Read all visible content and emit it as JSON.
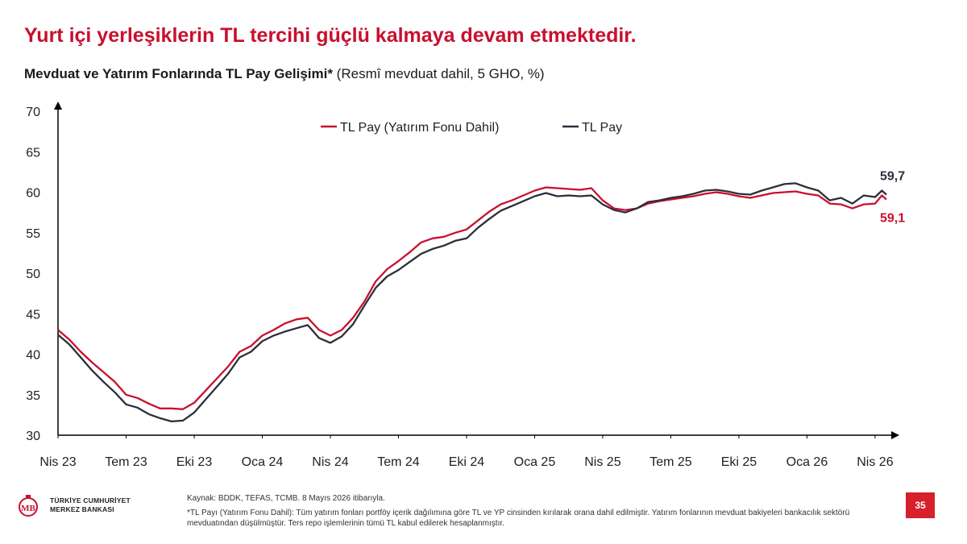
{
  "header": {
    "title": "Yurt içi yerleşiklerin TL tercihi güçlü kalmaya devam etmektedir.",
    "subtitle_bold": "Mevduat ve Yatırım Fonlarında TL Pay Gelişimi*",
    "subtitle_normal": " (Resmî mevduat dahil, 5 GHO, %)"
  },
  "footer": {
    "logo_line1": "TÜRKİYE CUMHURİYET",
    "logo_line2": "MERKEZ BANKASI",
    "source": "Kaynak: BDDK, TEFAS, TCMB. 8 Mayıs 2026 itibarıyla.",
    "note": "*TL Payı (Yatırım Fonu Dahil): Tüm yatırım fonları portföy içerik dağılımına göre TL ve YP cinsinden kırılarak orana dahil edilmiştir. Yatırım fonlarının mevduat bakiyeleri bankacılık sektörü mevduatından düşülmüştür. Ters repo işlemlerinin tümü TL kabul edilerek hesaplanmıştır.",
    "page_number": "35"
  },
  "colors": {
    "title_red": "#c8102e",
    "series_red": "#c8102e",
    "series_dark": "#2b2f3a",
    "page_box": "#d6202b"
  },
  "chart_data": {
    "type": "line",
    "ylim": [
      30,
      70
    ],
    "yticks": [
      30,
      35,
      40,
      45,
      50,
      55,
      60,
      65,
      70
    ],
    "xlim": [
      0,
      36.5
    ],
    "xticks": [
      {
        "pos": 0,
        "label": "Nis 23"
      },
      {
        "pos": 3,
        "label": "Tem 23"
      },
      {
        "pos": 6,
        "label": "Eki 23"
      },
      {
        "pos": 9,
        "label": "Oca 24"
      },
      {
        "pos": 12,
        "label": "Nis 24"
      },
      {
        "pos": 15,
        "label": "Tem 24"
      },
      {
        "pos": 18,
        "label": "Eki 24"
      },
      {
        "pos": 21,
        "label": "Oca 25"
      },
      {
        "pos": 24,
        "label": "Nis 25"
      },
      {
        "pos": 27,
        "label": "Tem 25"
      },
      {
        "pos": 30,
        "label": "Eki 25"
      },
      {
        "pos": 33,
        "label": "Oca 26"
      },
      {
        "pos": 36,
        "label": "Nis 26"
      }
    ],
    "legend_position": "top",
    "series": [
      {
        "name": "TL Pay (Yatırım Fonu Dahil)",
        "color": "#c8102e",
        "end_label": "59,1",
        "points": [
          [
            0,
            43
          ],
          [
            0.5,
            41.8
          ],
          [
            1,
            40.3
          ],
          [
            1.5,
            39
          ],
          [
            2,
            37.8
          ],
          [
            2.5,
            36.6
          ],
          [
            3,
            35
          ],
          [
            3.5,
            34.6
          ],
          [
            4,
            33.9
          ],
          [
            4.5,
            33.3
          ],
          [
            5,
            33.3
          ],
          [
            5.5,
            33.2
          ],
          [
            6,
            34
          ],
          [
            6.5,
            35.5
          ],
          [
            7,
            37
          ],
          [
            7.5,
            38.5
          ],
          [
            8,
            40.3
          ],
          [
            8.5,
            41
          ],
          [
            9,
            42.3
          ],
          [
            9.5,
            43
          ],
          [
            10,
            43.8
          ],
          [
            10.5,
            44.3
          ],
          [
            11,
            44.5
          ],
          [
            11.5,
            43
          ],
          [
            12,
            42.3
          ],
          [
            12.5,
            43
          ],
          [
            13,
            44.5
          ],
          [
            13.5,
            46.5
          ],
          [
            14,
            49
          ],
          [
            14.5,
            50.5
          ],
          [
            15,
            51.5
          ],
          [
            15.5,
            52.6
          ],
          [
            16,
            53.8
          ],
          [
            16.5,
            54.3
          ],
          [
            17,
            54.5
          ],
          [
            17.5,
            55
          ],
          [
            18,
            55.4
          ],
          [
            18.5,
            56.5
          ],
          [
            19,
            57.6
          ],
          [
            19.5,
            58.5
          ],
          [
            20,
            59
          ],
          [
            20.5,
            59.6
          ],
          [
            21,
            60.2
          ],
          [
            21.5,
            60.6
          ],
          [
            22,
            60.5
          ],
          [
            22.5,
            60.4
          ],
          [
            23,
            60.3
          ],
          [
            23.5,
            60.5
          ],
          [
            24,
            59
          ],
          [
            24.5,
            58
          ],
          [
            25,
            57.8
          ],
          [
            25.5,
            58
          ],
          [
            26,
            58.6
          ],
          [
            26.5,
            58.9
          ],
          [
            27,
            59.1
          ],
          [
            27.5,
            59.3
          ],
          [
            28,
            59.5
          ],
          [
            28.5,
            59.8
          ],
          [
            29,
            60
          ],
          [
            29.5,
            59.8
          ],
          [
            30,
            59.5
          ],
          [
            30.5,
            59.3
          ],
          [
            31,
            59.6
          ],
          [
            31.5,
            59.9
          ],
          [
            32,
            60
          ],
          [
            32.5,
            60.1
          ],
          [
            33,
            59.8
          ],
          [
            33.5,
            59.6
          ],
          [
            34,
            58.6
          ],
          [
            34.5,
            58.5
          ],
          [
            35,
            58
          ],
          [
            35.5,
            58.5
          ],
          [
            36,
            58.6
          ],
          [
            36.3,
            59.6
          ],
          [
            36.5,
            59.1
          ]
        ]
      },
      {
        "name": "TL Pay",
        "color": "#2b2f3a",
        "end_label": "59,7",
        "points": [
          [
            0,
            42.4
          ],
          [
            0.5,
            41.2
          ],
          [
            1,
            39.6
          ],
          [
            1.5,
            38
          ],
          [
            2,
            36.6
          ],
          [
            2.5,
            35.3
          ],
          [
            3,
            33.8
          ],
          [
            3.5,
            33.4
          ],
          [
            4,
            32.6
          ],
          [
            4.5,
            32.1
          ],
          [
            5,
            31.7
          ],
          [
            5.5,
            31.8
          ],
          [
            6,
            32.8
          ],
          [
            6.5,
            34.4
          ],
          [
            7,
            36
          ],
          [
            7.5,
            37.6
          ],
          [
            8,
            39.6
          ],
          [
            8.5,
            40.3
          ],
          [
            9,
            41.6
          ],
          [
            9.5,
            42.3
          ],
          [
            10,
            42.8
          ],
          [
            10.5,
            43.2
          ],
          [
            11,
            43.6
          ],
          [
            11.5,
            42
          ],
          [
            12,
            41.4
          ],
          [
            12.5,
            42.2
          ],
          [
            13,
            43.7
          ],
          [
            13.5,
            46
          ],
          [
            14,
            48.2
          ],
          [
            14.5,
            49.6
          ],
          [
            15,
            50.4
          ],
          [
            15.5,
            51.4
          ],
          [
            16,
            52.4
          ],
          [
            16.5,
            53
          ],
          [
            17,
            53.4
          ],
          [
            17.5,
            54
          ],
          [
            18,
            54.3
          ],
          [
            18.5,
            55.6
          ],
          [
            19,
            56.7
          ],
          [
            19.5,
            57.7
          ],
          [
            20,
            58.3
          ],
          [
            20.5,
            58.9
          ],
          [
            21,
            59.5
          ],
          [
            21.5,
            59.9
          ],
          [
            22,
            59.5
          ],
          [
            22.5,
            59.6
          ],
          [
            23,
            59.5
          ],
          [
            23.5,
            59.6
          ],
          [
            24,
            58.5
          ],
          [
            24.5,
            57.8
          ],
          [
            25,
            57.5
          ],
          [
            25.5,
            58
          ],
          [
            26,
            58.8
          ],
          [
            26.5,
            59
          ],
          [
            27,
            59.3
          ],
          [
            27.5,
            59.5
          ],
          [
            28,
            59.8
          ],
          [
            28.5,
            60.2
          ],
          [
            29,
            60.3
          ],
          [
            29.5,
            60.1
          ],
          [
            30,
            59.8
          ],
          [
            30.5,
            59.7
          ],
          [
            31,
            60.2
          ],
          [
            31.5,
            60.6
          ],
          [
            32,
            61
          ],
          [
            32.5,
            61.1
          ],
          [
            33,
            60.6
          ],
          [
            33.5,
            60.2
          ],
          [
            34,
            59
          ],
          [
            34.5,
            59.3
          ],
          [
            35,
            58.6
          ],
          [
            35.5,
            59.6
          ],
          [
            36,
            59.4
          ],
          [
            36.3,
            60.2
          ],
          [
            36.5,
            59.7
          ]
        ]
      }
    ]
  }
}
